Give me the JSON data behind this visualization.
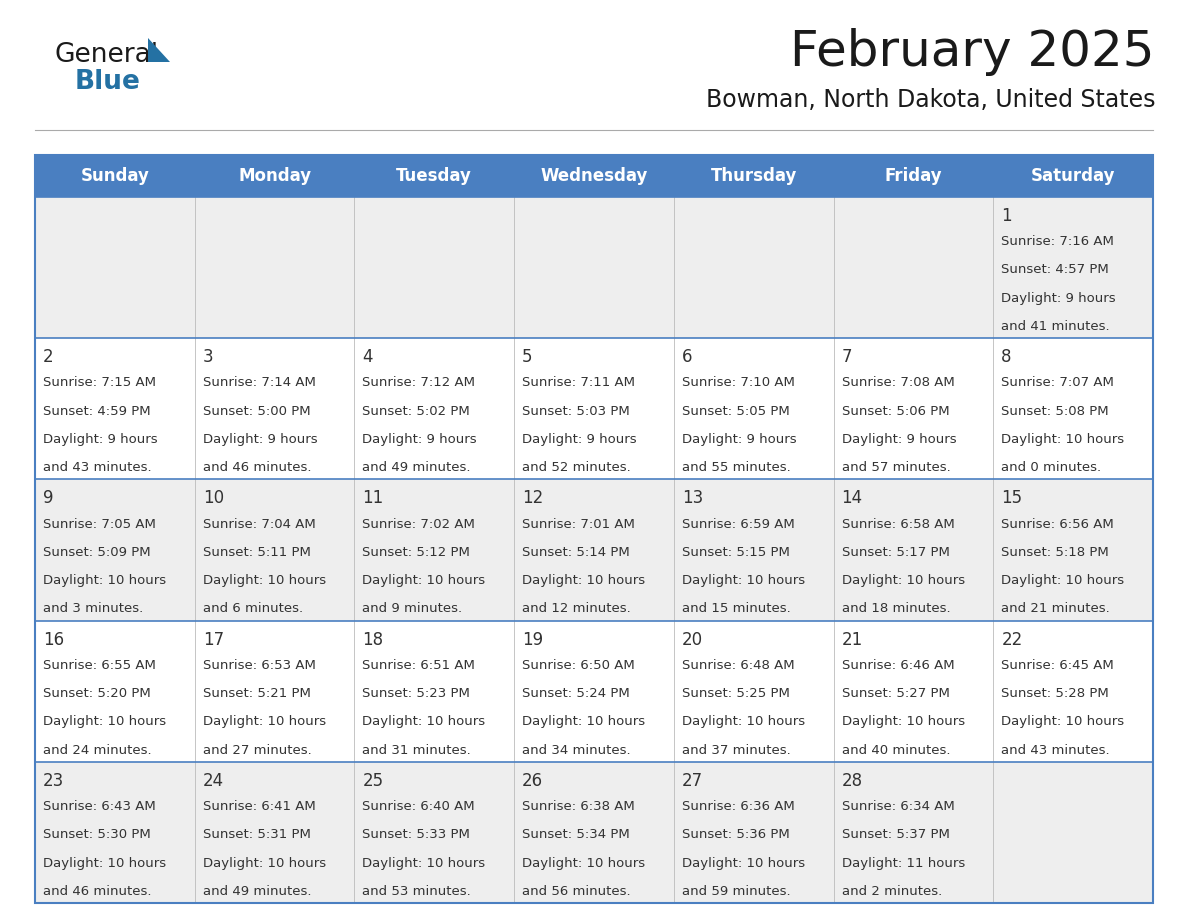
{
  "title": "February 2025",
  "subtitle": "Bowman, North Dakota, United States",
  "header_bg": "#4a7fc1",
  "header_text": "#FFFFFF",
  "header_days": [
    "Sunday",
    "Monday",
    "Tuesday",
    "Wednesday",
    "Thursday",
    "Friday",
    "Saturday"
  ],
  "cell_bg_even": "#EEEEEE",
  "cell_bg_odd": "#FFFFFF",
  "border_color": "#4a7fc1",
  "divider_color": "#4a7fc1",
  "text_color": "#333333",
  "title_color": "#1a1a1a",
  "subtitle_color": "#1a1a1a",
  "logo_color1": "#1a1a1a",
  "logo_color2": "#2471a3",
  "logo_triangle_color": "#2471a3",
  "days": [
    {
      "day": 1,
      "col": 6,
      "row": 0,
      "sunrise": "7:16 AM",
      "sunset": "4:57 PM",
      "daylight_h": "9 hours",
      "daylight_m": "and 41 minutes."
    },
    {
      "day": 2,
      "col": 0,
      "row": 1,
      "sunrise": "7:15 AM",
      "sunset": "4:59 PM",
      "daylight_h": "9 hours",
      "daylight_m": "and 43 minutes."
    },
    {
      "day": 3,
      "col": 1,
      "row": 1,
      "sunrise": "7:14 AM",
      "sunset": "5:00 PM",
      "daylight_h": "9 hours",
      "daylight_m": "and 46 minutes."
    },
    {
      "day": 4,
      "col": 2,
      "row": 1,
      "sunrise": "7:12 AM",
      "sunset": "5:02 PM",
      "daylight_h": "9 hours",
      "daylight_m": "and 49 minutes."
    },
    {
      "day": 5,
      "col": 3,
      "row": 1,
      "sunrise": "7:11 AM",
      "sunset": "5:03 PM",
      "daylight_h": "9 hours",
      "daylight_m": "and 52 minutes."
    },
    {
      "day": 6,
      "col": 4,
      "row": 1,
      "sunrise": "7:10 AM",
      "sunset": "5:05 PM",
      "daylight_h": "9 hours",
      "daylight_m": "and 55 minutes."
    },
    {
      "day": 7,
      "col": 5,
      "row": 1,
      "sunrise": "7:08 AM",
      "sunset": "5:06 PM",
      "daylight_h": "9 hours",
      "daylight_m": "and 57 minutes."
    },
    {
      "day": 8,
      "col": 6,
      "row": 1,
      "sunrise": "7:07 AM",
      "sunset": "5:08 PM",
      "daylight_h": "10 hours",
      "daylight_m": "and 0 minutes."
    },
    {
      "day": 9,
      "col": 0,
      "row": 2,
      "sunrise": "7:05 AM",
      "sunset": "5:09 PM",
      "daylight_h": "10 hours",
      "daylight_m": "and 3 minutes."
    },
    {
      "day": 10,
      "col": 1,
      "row": 2,
      "sunrise": "7:04 AM",
      "sunset": "5:11 PM",
      "daylight_h": "10 hours",
      "daylight_m": "and 6 minutes."
    },
    {
      "day": 11,
      "col": 2,
      "row": 2,
      "sunrise": "7:02 AM",
      "sunset": "5:12 PM",
      "daylight_h": "10 hours",
      "daylight_m": "and 9 minutes."
    },
    {
      "day": 12,
      "col": 3,
      "row": 2,
      "sunrise": "7:01 AM",
      "sunset": "5:14 PM",
      "daylight_h": "10 hours",
      "daylight_m": "and 12 minutes."
    },
    {
      "day": 13,
      "col": 4,
      "row": 2,
      "sunrise": "6:59 AM",
      "sunset": "5:15 PM",
      "daylight_h": "10 hours",
      "daylight_m": "and 15 minutes."
    },
    {
      "day": 14,
      "col": 5,
      "row": 2,
      "sunrise": "6:58 AM",
      "sunset": "5:17 PM",
      "daylight_h": "10 hours",
      "daylight_m": "and 18 minutes."
    },
    {
      "day": 15,
      "col": 6,
      "row": 2,
      "sunrise": "6:56 AM",
      "sunset": "5:18 PM",
      "daylight_h": "10 hours",
      "daylight_m": "and 21 minutes."
    },
    {
      "day": 16,
      "col": 0,
      "row": 3,
      "sunrise": "6:55 AM",
      "sunset": "5:20 PM",
      "daylight_h": "10 hours",
      "daylight_m": "and 24 minutes."
    },
    {
      "day": 17,
      "col": 1,
      "row": 3,
      "sunrise": "6:53 AM",
      "sunset": "5:21 PM",
      "daylight_h": "10 hours",
      "daylight_m": "and 27 minutes."
    },
    {
      "day": 18,
      "col": 2,
      "row": 3,
      "sunrise": "6:51 AM",
      "sunset": "5:23 PM",
      "daylight_h": "10 hours",
      "daylight_m": "and 31 minutes."
    },
    {
      "day": 19,
      "col": 3,
      "row": 3,
      "sunrise": "6:50 AM",
      "sunset": "5:24 PM",
      "daylight_h": "10 hours",
      "daylight_m": "and 34 minutes."
    },
    {
      "day": 20,
      "col": 4,
      "row": 3,
      "sunrise": "6:48 AM",
      "sunset": "5:25 PM",
      "daylight_h": "10 hours",
      "daylight_m": "and 37 minutes."
    },
    {
      "day": 21,
      "col": 5,
      "row": 3,
      "sunrise": "6:46 AM",
      "sunset": "5:27 PM",
      "daylight_h": "10 hours",
      "daylight_m": "and 40 minutes."
    },
    {
      "day": 22,
      "col": 6,
      "row": 3,
      "sunrise": "6:45 AM",
      "sunset": "5:28 PM",
      "daylight_h": "10 hours",
      "daylight_m": "and 43 minutes."
    },
    {
      "day": 23,
      "col": 0,
      "row": 4,
      "sunrise": "6:43 AM",
      "sunset": "5:30 PM",
      "daylight_h": "10 hours",
      "daylight_m": "and 46 minutes."
    },
    {
      "day": 24,
      "col": 1,
      "row": 4,
      "sunrise": "6:41 AM",
      "sunset": "5:31 PM",
      "daylight_h": "10 hours",
      "daylight_m": "and 49 minutes."
    },
    {
      "day": 25,
      "col": 2,
      "row": 4,
      "sunrise": "6:40 AM",
      "sunset": "5:33 PM",
      "daylight_h": "10 hours",
      "daylight_m": "and 53 minutes."
    },
    {
      "day": 26,
      "col": 3,
      "row": 4,
      "sunrise": "6:38 AM",
      "sunset": "5:34 PM",
      "daylight_h": "10 hours",
      "daylight_m": "and 56 minutes."
    },
    {
      "day": 27,
      "col": 4,
      "row": 4,
      "sunrise": "6:36 AM",
      "sunset": "5:36 PM",
      "daylight_h": "10 hours",
      "daylight_m": "and 59 minutes."
    },
    {
      "day": 28,
      "col": 5,
      "row": 4,
      "sunrise": "6:34 AM",
      "sunset": "5:37 PM",
      "daylight_h": "11 hours",
      "daylight_m": "and 2 minutes."
    }
  ],
  "num_rows": 5,
  "num_cols": 7
}
